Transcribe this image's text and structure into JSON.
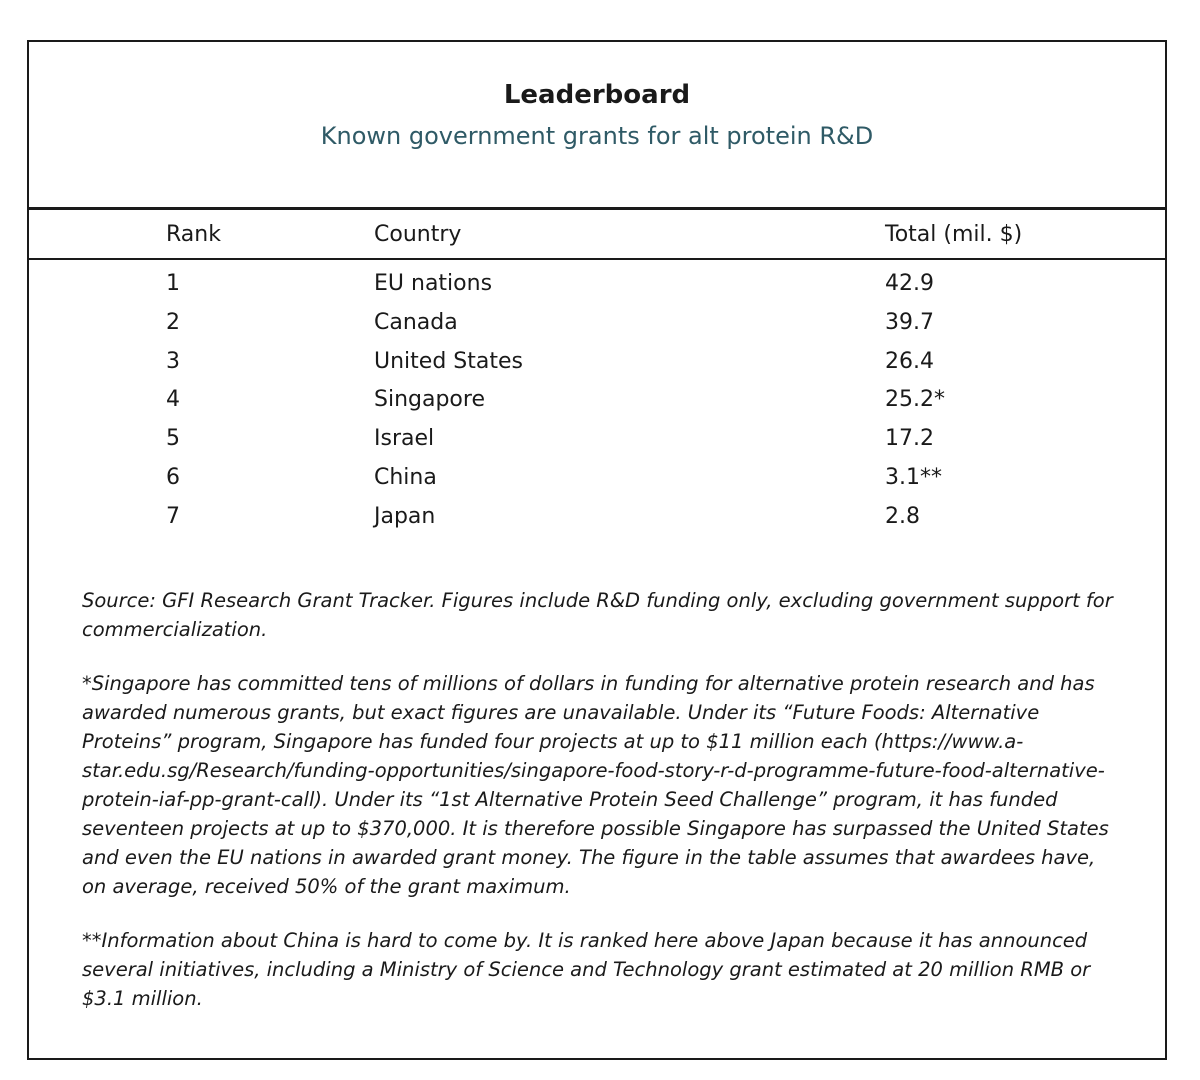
{
  "chart_data": {
    "type": "table",
    "title": "Leaderboard",
    "subtitle": "Known government grants for alt protein R&D",
    "columns": [
      "Rank",
      "Country",
      "Total (mil. $)"
    ],
    "rows": [
      {
        "rank": "1",
        "country": "EU nations",
        "total": "42.9"
      },
      {
        "rank": "2",
        "country": "Canada",
        "total": "39.7"
      },
      {
        "rank": "3",
        "country": "United States",
        "total": "26.4"
      },
      {
        "rank": "4",
        "country": "Singapore",
        "total": "25.2*"
      },
      {
        "rank": "5",
        "country": "Israel",
        "total": "17.2"
      },
      {
        "rank": "6",
        "country": "China",
        "total": "3.1**"
      },
      {
        "rank": "7",
        "country": "Japan",
        "total": "2.8"
      }
    ],
    "notes": [
      "Source: GFI Research Grant Tracker. Figures include R&D funding only, excluding government support for commercialization.",
      "*Singapore has committed tens of millions of dollars in funding for alternative protein research and has awarded numerous grants, but exact figures are unavailable. Under its “Future Foods: Alternative Proteins” program, Singapore has funded four projects at up to $11 million each (https://www.a-star.edu.sg/Research/funding-opportunities/singapore-food-story-r-d-programme-future-food-alternative-protein-iaf-pp-grant-call). Under its “1st Alternative Protein Seed Challenge” program, it has funded seventeen projects at up to $370,000. It is therefore possible Singapore has surpassed the United States and even the EU nations in awarded grant money. The figure in the table assumes that awardees have, on average, received 50% of the grant maximum.",
      "**Information about China is hard to come by. It is ranked here above Japan because it has announced several initiatives, including a Ministry of Science and Technology grant estimated at 20 million RMB or $3.1 million."
    ]
  },
  "colors": {
    "text": "#1a1a1a",
    "subtitle": "#2f5a66",
    "border": "#1a1a1a"
  }
}
